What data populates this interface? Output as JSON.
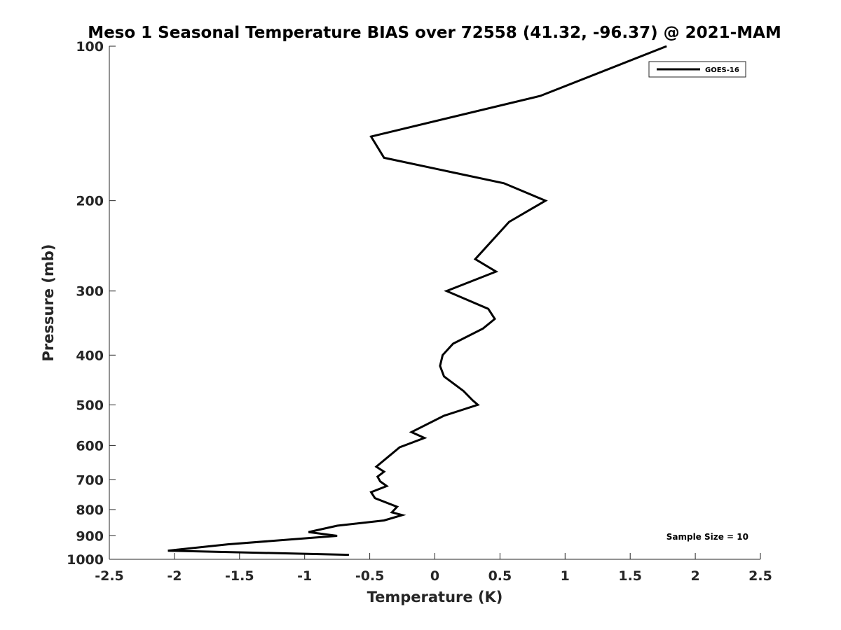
{
  "chart_data": {
    "type": "line",
    "title": "Meso 1 Seasonal Temperature BIAS over 72558 (41.32, -96.37) @ 2021-MAM",
    "xlabel": "Temperature (K)",
    "ylabel": "Pressure (mb)",
    "xlim": [
      -2.5,
      2.5
    ],
    "ylim": [
      100,
      1000
    ],
    "y_scale": "log",
    "y_reversed": true,
    "x_ticks": [
      "-2.5",
      "-2",
      "-1.5",
      "-1",
      "-0.5",
      "0",
      "0.5",
      "1",
      "1.5",
      "2",
      "2.5"
    ],
    "x_tick_values": [
      -2.5,
      -2,
      -1.5,
      -1,
      -0.5,
      0,
      0.5,
      1,
      1.5,
      2,
      2.5
    ],
    "y_ticks": [
      "100",
      "200",
      "300",
      "400",
      "500",
      "600",
      "700",
      "800",
      "900",
      "1000"
    ],
    "y_tick_values": [
      100,
      200,
      300,
      400,
      500,
      600,
      700,
      800,
      900,
      1000
    ],
    "grid": false,
    "legend_position": "top-right",
    "annotation": "Sample Size = 10",
    "series": [
      {
        "name": "GOES-16",
        "color": "#000000",
        "points": [
          {
            "x": 1.78,
            "p": 100
          },
          {
            "x": 0.81,
            "p": 125
          },
          {
            "x": -0.49,
            "p": 150
          },
          {
            "x": -0.39,
            "p": 165
          },
          {
            "x": 0.53,
            "p": 185
          },
          {
            "x": 0.85,
            "p": 200
          },
          {
            "x": 0.57,
            "p": 220
          },
          {
            "x": 0.31,
            "p": 260
          },
          {
            "x": 0.47,
            "p": 275
          },
          {
            "x": 0.09,
            "p": 300
          },
          {
            "x": 0.41,
            "p": 325
          },
          {
            "x": 0.46,
            "p": 340
          },
          {
            "x": 0.37,
            "p": 355
          },
          {
            "x": 0.14,
            "p": 380
          },
          {
            "x": 0.06,
            "p": 400
          },
          {
            "x": 0.04,
            "p": 420
          },
          {
            "x": 0.07,
            "p": 440
          },
          {
            "x": 0.22,
            "p": 470
          },
          {
            "x": 0.29,
            "p": 490
          },
          {
            "x": 0.33,
            "p": 500
          },
          {
            "x": 0.07,
            "p": 525
          },
          {
            "x": -0.18,
            "p": 565
          },
          {
            "x": -0.08,
            "p": 580
          },
          {
            "x": -0.27,
            "p": 605
          },
          {
            "x": -0.45,
            "p": 660
          },
          {
            "x": -0.39,
            "p": 675
          },
          {
            "x": -0.44,
            "p": 690
          },
          {
            "x": -0.42,
            "p": 705
          },
          {
            "x": -0.37,
            "p": 720
          },
          {
            "x": -0.49,
            "p": 740
          },
          {
            "x": -0.46,
            "p": 760
          },
          {
            "x": -0.29,
            "p": 790
          },
          {
            "x": -0.33,
            "p": 810
          },
          {
            "x": -0.25,
            "p": 820
          },
          {
            "x": -0.39,
            "p": 840
          },
          {
            "x": -0.75,
            "p": 860
          },
          {
            "x": -0.97,
            "p": 885
          },
          {
            "x": -0.75,
            "p": 900
          },
          {
            "x": -1.59,
            "p": 935
          },
          {
            "x": -2.05,
            "p": 962
          },
          {
            "x": -0.66,
            "p": 980
          }
        ]
      }
    ]
  }
}
